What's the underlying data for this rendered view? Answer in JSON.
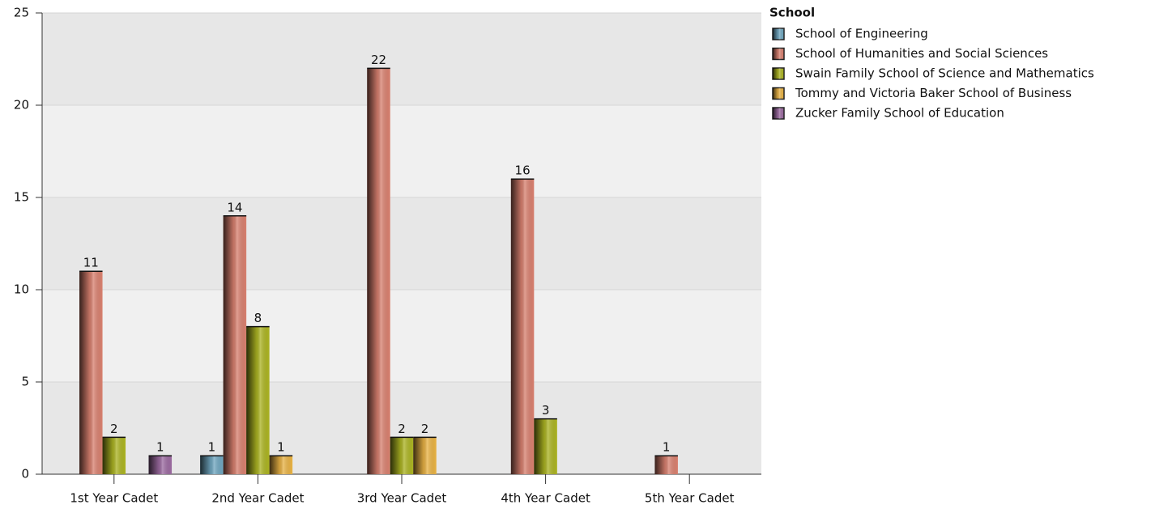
{
  "chart_data": {
    "type": "bar",
    "categories": [
      "1st Year Cadet",
      "2nd Year Cadet",
      "3rd Year Cadet",
      "4th Year Cadet",
      "5th Year Cadet"
    ],
    "legend_title": "School",
    "series": [
      {
        "name": "School of Engineering",
        "color": "#6fa6bf",
        "values": [
          null,
          1,
          null,
          null,
          null
        ]
      },
      {
        "name": "School of Humanities and Social Sciences",
        "color": "#d8806f",
        "values": [
          11,
          14,
          22,
          16,
          1
        ]
      },
      {
        "name": "Swain Family School of Science and Mathematics",
        "color": "#abb322",
        "values": [
          2,
          8,
          2,
          3,
          null
        ]
      },
      {
        "name": "Tommy and Victoria Baker School of Business",
        "color": "#e8b244",
        "values": [
          null,
          1,
          2,
          null,
          null
        ]
      },
      {
        "name": "Zucker Family School of Education",
        "color": "#9b6aa0",
        "values": [
          1,
          null,
          null,
          null,
          null
        ]
      }
    ],
    "ylim": [
      0,
      25
    ],
    "yticks": [
      0,
      5,
      10,
      15,
      20,
      25
    ],
    "grid": true,
    "legend": "right"
  }
}
